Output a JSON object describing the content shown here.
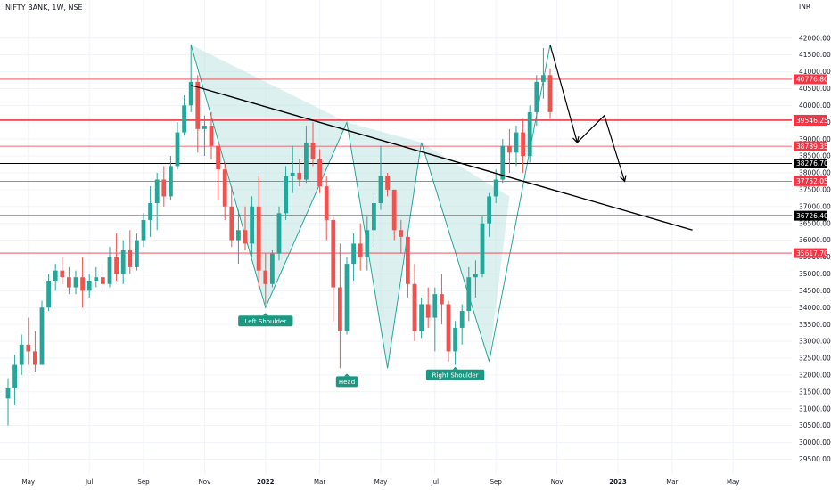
{
  "symbol": "NIFTY BANK, 1W, NSE",
  "currency": "INR",
  "colors": {
    "up": "#26a69a",
    "down": "#ef5350",
    "red_level": "#f23645",
    "black_level": "#000000",
    "pattern_fill": "#b2dfdb",
    "pattern_stroke": "#26a69a",
    "grid": "#f0f3fa",
    "label_bg": "#1a9882"
  },
  "chart_data": {
    "type": "candlestick",
    "title": "NIFTY BANK, 1W, NSE",
    "ylabel": "INR",
    "ylim": [
      29300,
      42600
    ],
    "y_ticks": [
      29500,
      30000,
      30500,
      31000,
      31500,
      32000,
      32500,
      33000,
      33500,
      34000,
      34500,
      35000,
      35500,
      36000,
      36500,
      37000,
      37500,
      38000,
      38500,
      39000,
      39500,
      40000,
      40500,
      41000,
      41500,
      42000
    ],
    "y_tick_labels": [
      "29500.00",
      "30000.00",
      "30500.00",
      "31000.00",
      "31500.00",
      "32000.00",
      "32500.00",
      "33000.00",
      "33500.00",
      "34000.00",
      "34500.00",
      "35000.00",
      "35500.00",
      "36000.00",
      "36500.00",
      "37000.00",
      "37500.00",
      "38000.00",
      "38500.00",
      "39000.00",
      "39500.00",
      "40000.00",
      "40500.00",
      "41000.00",
      "41500.00",
      "42000.00"
    ],
    "x_ticks": [
      {
        "label": "May",
        "week": 3,
        "bold": false
      },
      {
        "label": "Jul",
        "week": 12,
        "bold": false
      },
      {
        "label": "Sep",
        "week": 20,
        "bold": false
      },
      {
        "label": "Nov",
        "week": 29,
        "bold": false
      },
      {
        "label": "2022",
        "week": 38,
        "bold": true
      },
      {
        "label": "Mar",
        "week": 46,
        "bold": false
      },
      {
        "label": "May",
        "week": 55,
        "bold": false
      },
      {
        "label": "Jul",
        "week": 63,
        "bold": false
      },
      {
        "label": "Sep",
        "week": 72,
        "bold": false
      },
      {
        "label": "Nov",
        "week": 81,
        "bold": false
      },
      {
        "label": "2023",
        "week": 90,
        "bold": true
      },
      {
        "label": "Mar",
        "week": 98,
        "bold": false
      },
      {
        "label": "May",
        "week": 107,
        "bold": false
      }
    ],
    "x_range": [
      0,
      115
    ],
    "candles": [
      [
        31300,
        31900,
        30500,
        31600
      ],
      [
        31600,
        32600,
        31100,
        32300
      ],
      [
        32300,
        33200,
        32000,
        32900
      ],
      [
        32900,
        33700,
        32300,
        32700
      ],
      [
        32700,
        33300,
        32100,
        32300
      ],
      [
        32300,
        34200,
        32300,
        34000
      ],
      [
        34000,
        35000,
        33900,
        34800
      ],
      [
        34800,
        35300,
        34500,
        35100
      ],
      [
        35100,
        35500,
        34700,
        34900
      ],
      [
        34900,
        35200,
        34400,
        34600
      ],
      [
        34600,
        35100,
        34400,
        34900
      ],
      [
        34900,
        35500,
        34000,
        34500
      ],
      [
        34500,
        35000,
        34300,
        34800
      ],
      [
        34800,
        35200,
        34600,
        34900
      ],
      [
        34900,
        35300,
        34500,
        34700
      ],
      [
        34700,
        35800,
        34600,
        35500
      ],
      [
        35500,
        36200,
        34800,
        35000
      ],
      [
        35000,
        36000,
        34700,
        35700
      ],
      [
        35700,
        36300,
        35000,
        35200
      ],
      [
        35200,
        36200,
        35100,
        36000
      ],
      [
        36000,
        36800,
        35800,
        36600
      ],
      [
        36600,
        37600,
        36100,
        37100
      ],
      [
        37100,
        38000,
        36300,
        37800
      ],
      [
        37800,
        38200,
        37000,
        37300
      ],
      [
        37300,
        38500,
        37200,
        38200
      ],
      [
        38200,
        39500,
        38100,
        39200
      ],
      [
        39200,
        40300,
        39100,
        40000
      ],
      [
        40000,
        41800,
        39800,
        40700
      ],
      [
        40700,
        40900,
        38600,
        39300
      ],
      [
        39300,
        39700,
        38500,
        39400
      ],
      [
        39400,
        39800,
        38400,
        38800
      ],
      [
        38800,
        38900,
        37200,
        38100
      ],
      [
        38100,
        38300,
        36600,
        37000
      ],
      [
        37000,
        37600,
        35800,
        36000
      ],
      [
        36000,
        36900,
        35300,
        36300
      ],
      [
        36300,
        37000,
        35700,
        35900
      ],
      [
        35900,
        37300,
        35500,
        37000
      ],
      [
        37000,
        37900,
        34600,
        35100
      ],
      [
        35100,
        35600,
        34100,
        34700
      ],
      [
        34700,
        35700,
        34600,
        35600
      ],
      [
        35600,
        37000,
        35400,
        36800
      ],
      [
        36800,
        38200,
        36600,
        37900
      ],
      [
        37900,
        38800,
        37400,
        38000
      ],
      [
        38000,
        38400,
        37600,
        37800
      ],
      [
        37800,
        39400,
        37700,
        38900
      ],
      [
        38900,
        39500,
        38200,
        38400
      ],
      [
        38400,
        38700,
        37400,
        37600
      ],
      [
        37600,
        37900,
        36000,
        36600
      ],
      [
        36600,
        36700,
        33600,
        34600
      ],
      [
        34600,
        35900,
        32200,
        33300
      ],
      [
        33300,
        35500,
        33200,
        35300
      ],
      [
        35300,
        36200,
        34800,
        35900
      ],
      [
        35900,
        36500,
        35100,
        35500
      ],
      [
        35500,
        36700,
        35100,
        36300
      ],
      [
        36300,
        37400,
        35800,
        37100
      ],
      [
        37100,
        38800,
        36900,
        37900
      ],
      [
        37900,
        38000,
        37300,
        37500
      ],
      [
        37500,
        37500,
        36000,
        36300
      ],
      [
        36300,
        36600,
        35600,
        36100
      ],
      [
        36100,
        36200,
        34300,
        34700
      ],
      [
        34700,
        35300,
        33000,
        33300
      ],
      [
        33300,
        34300,
        33100,
        34100
      ],
      [
        34100,
        34600,
        33400,
        33700
      ],
      [
        33700,
        34600,
        32700,
        34400
      ],
      [
        34400,
        35000,
        33500,
        34100
      ],
      [
        34100,
        34200,
        32400,
        32700
      ],
      [
        32700,
        33600,
        32300,
        33400
      ],
      [
        33400,
        34100,
        32900,
        33900
      ],
      [
        33900,
        35200,
        33600,
        34900
      ],
      [
        34900,
        35400,
        34300,
        35000
      ],
      [
        35000,
        36700,
        34900,
        36500
      ],
      [
        36500,
        37400,
        36100,
        37300
      ],
      [
        37300,
        38100,
        37100,
        37800
      ],
      [
        37800,
        39000,
        37700,
        38800
      ],
      [
        38800,
        39300,
        38000,
        38600
      ],
      [
        38600,
        39400,
        38200,
        39200
      ],
      [
        39200,
        39600,
        38000,
        38500
      ],
      [
        38500,
        40000,
        38300,
        39800
      ],
      [
        39800,
        40900,
        39400,
        40700
      ],
      [
        40700,
        41700,
        40200,
        40900
      ],
      [
        40900,
        41100,
        39600,
        39800
      ]
    ],
    "levels": [
      {
        "value": 40776.8,
        "label": "40776.80",
        "style": "red"
      },
      {
        "value": 39573.7,
        "label": "39573.70",
        "style": "red"
      },
      {
        "value": 39546.25,
        "label": "39546.25",
        "style": "red"
      },
      {
        "value": 38789.35,
        "label": "38789.35",
        "style": "red"
      },
      {
        "value": 38276.7,
        "label": "38276.70",
        "style": "black"
      },
      {
        "value": 37752.05,
        "label": "37752.05",
        "style": "red"
      },
      {
        "value": 36726.4,
        "label": "36726.40",
        "style": "black"
      },
      {
        "value": 35617.7,
        "label": "35617.70",
        "style": "red"
      }
    ],
    "pattern_points": [
      [
        27,
        41800
      ],
      [
        38,
        34000
      ],
      [
        50,
        39500
      ],
      [
        56,
        32200
      ],
      [
        61,
        38900
      ],
      [
        71,
        32400
      ],
      [
        80,
        41800
      ]
    ],
    "trendline": [
      [
        27,
        40600
      ],
      [
        101,
        36300
      ]
    ],
    "pattern_fill_polygons": [
      [
        [
          27,
          41800
        ],
        [
          38,
          34000
        ],
        [
          50,
          39500
        ]
      ],
      [
        [
          50,
          39500
        ],
        [
          56,
          32200
        ],
        [
          61,
          38900
        ]
      ],
      [
        [
          61,
          38900
        ],
        [
          71,
          32400
        ],
        [
          74,
          37300
        ]
      ]
    ],
    "projection_arrow": [
      [
        80,
        41800
      ],
      [
        84,
        38900
      ],
      [
        88,
        39700
      ],
      [
        91,
        37750
      ]
    ],
    "pattern_labels": [
      {
        "text": "Left Shoulder",
        "week": 38,
        "price": 34000
      },
      {
        "text": "Head",
        "week": 50,
        "price": 32200
      },
      {
        "text": "Right Shoulder",
        "week": 66,
        "price": 32400
      }
    ]
  }
}
